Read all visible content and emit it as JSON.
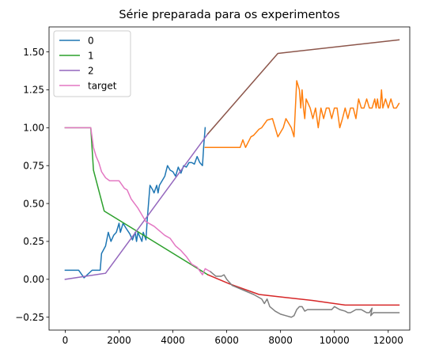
{
  "chart_data": {
    "type": "line",
    "title": "Série preparada para os experimentos",
    "xlabel": "",
    "ylabel": "",
    "xlim": [
      -600,
      12800
    ],
    "ylim": [
      -0.335,
      1.665
    ],
    "xticks": [
      0,
      2000,
      4000,
      6000,
      8000,
      10000,
      12000
    ],
    "xtick_labels": [
      "0",
      "2000",
      "4000",
      "6000",
      "8000",
      "10000",
      "12000"
    ],
    "yticks": [
      -0.25,
      0.0,
      0.25,
      0.5,
      0.75,
      1.0,
      1.25,
      1.5
    ],
    "ytick_labels": [
      "−0.25",
      "0.00",
      "0.25",
      "0.50",
      "0.75",
      "1.00",
      "1.25",
      "1.50"
    ],
    "grid": false,
    "legend_position": "top-left",
    "series": [
      {
        "name": "0",
        "legend": true,
        "color": "#1f77b4",
        "x": [
          0,
          400,
          500,
          700,
          1000,
          1200,
          1300,
          1350,
          1500,
          1600,
          1700,
          1800,
          1900,
          2000,
          2050,
          2150,
          2250,
          2400,
          2500,
          2600,
          2650,
          2700,
          2750,
          2850,
          2900,
          3000,
          3050,
          3150,
          3250,
          3300,
          3400,
          3450,
          3500,
          3600,
          3700,
          3800,
          3900,
          4000,
          4100,
          4200,
          4300,
          4400,
          4500,
          4600,
          4700,
          4800,
          4900,
          5000,
          5100,
          5150,
          5200
        ],
        "y": [
          0.06,
          0.06,
          0.06,
          0.01,
          0.06,
          0.06,
          0.06,
          0.17,
          0.22,
          0.31,
          0.25,
          0.29,
          0.31,
          0.37,
          0.31,
          0.37,
          0.34,
          0.3,
          0.26,
          0.31,
          0.25,
          0.31,
          0.29,
          0.25,
          0.31,
          0.26,
          0.4,
          0.62,
          0.59,
          0.57,
          0.62,
          0.57,
          0.62,
          0.65,
          0.68,
          0.75,
          0.72,
          0.71,
          0.68,
          0.74,
          0.7,
          0.75,
          0.74,
          0.77,
          0.77,
          0.76,
          0.81,
          0.77,
          0.75,
          0.89,
          1.0
        ]
      },
      {
        "name": "",
        "legend": false,
        "color": "#ff7f0e",
        "x": [
          5200,
          5800,
          6500,
          6600,
          6700,
          6900,
          7000,
          7200,
          7300,
          7500,
          7700,
          7900,
          8100,
          8200,
          8400,
          8500,
          8600,
          8700,
          8750,
          8800,
          8850,
          8900,
          8950,
          9100,
          9200,
          9300,
          9400,
          9500,
          9600,
          9700,
          9800,
          9900,
          10000,
          10100,
          10200,
          10300,
          10400,
          10500,
          10600,
          10700,
          10800,
          10900,
          11000,
          11100,
          11200,
          11300,
          11400,
          11500,
          11550,
          11600,
          11650,
          11700,
          11750,
          11800,
          11900,
          12000,
          12100,
          12200,
          12300,
          12400
        ],
        "y": [
          0.87,
          0.87,
          0.87,
          0.92,
          0.87,
          0.94,
          0.95,
          0.99,
          1.0,
          1.05,
          1.06,
          0.94,
          1.0,
          1.06,
          1.0,
          0.94,
          1.31,
          1.25,
          1.13,
          1.25,
          1.13,
          1.06,
          1.19,
          1.13,
          1.06,
          1.13,
          1.0,
          1.13,
          1.06,
          1.13,
          1.13,
          1.06,
          1.13,
          1.13,
          1.0,
          1.06,
          1.13,
          1.06,
          1.13,
          1.13,
          1.06,
          1.19,
          1.13,
          1.13,
          1.19,
          1.13,
          1.13,
          1.19,
          1.13,
          1.19,
          1.13,
          1.13,
          1.25,
          1.13,
          1.19,
          1.13,
          1.19,
          1.13,
          1.13,
          1.16
        ]
      },
      {
        "name": "1",
        "legend": true,
        "color": "#2ca02c",
        "x": [
          0,
          950,
          1050,
          1450,
          5300
        ],
        "y": [
          1.0,
          1.0,
          0.72,
          0.45,
          0.03
        ]
      },
      {
        "name": "",
        "legend": false,
        "color": "#d62728",
        "x": [
          5300,
          6100,
          7200,
          8200,
          9200,
          10400,
          12400
        ],
        "y": [
          0.03,
          -0.03,
          -0.1,
          -0.12,
          -0.14,
          -0.17,
          -0.17
        ]
      },
      {
        "name": "2",
        "legend": true,
        "color": "#9467bd",
        "x": [
          0,
          1500,
          5300
        ],
        "y": [
          0.0,
          0.04,
          0.96
        ]
      },
      {
        "name": "",
        "legend": false,
        "color": "#8c564b",
        "x": [
          5300,
          7900,
          12400
        ],
        "y": [
          0.96,
          1.49,
          1.58
        ]
      },
      {
        "name": "target",
        "legend": true,
        "color": "#e377c2",
        "x": [
          0,
          850,
          950,
          1050,
          1150,
          1250,
          1350,
          1500,
          1650,
          2000,
          2200,
          2300,
          2450,
          2700,
          3000,
          3300,
          3500,
          3700,
          3900,
          4100,
          4300,
          4500,
          4700,
          4900,
          5100,
          5200,
          5300,
          5400
        ],
        "y": [
          1.0,
          1.0,
          1.0,
          0.87,
          0.81,
          0.77,
          0.71,
          0.67,
          0.65,
          0.65,
          0.6,
          0.59,
          0.53,
          0.47,
          0.38,
          0.35,
          0.32,
          0.29,
          0.27,
          0.22,
          0.19,
          0.15,
          0.1,
          0.08,
          0.03,
          0.07,
          0.06,
          0.05
        ]
      },
      {
        "name": "",
        "legend": false,
        "color": "#7f7f7f",
        "x": [
          5400,
          5600,
          5800,
          5900,
          6000,
          6200,
          6600,
          7000,
          7300,
          7400,
          7500,
          7600,
          7800,
          8000,
          8200,
          8400,
          8500,
          8600,
          8700,
          8800,
          8900,
          9000,
          9500,
          9600,
          9800,
          9900,
          10000,
          10200,
          10400,
          10500,
          10600,
          10800,
          11000,
          11100,
          11200,
          11300,
          11400,
          11350,
          11450,
          11600,
          11800,
          12000,
          12200,
          12400
        ],
        "y": [
          0.05,
          0.02,
          0.02,
          0.03,
          0.0,
          -0.04,
          -0.07,
          -0.1,
          -0.13,
          -0.16,
          -0.13,
          -0.18,
          -0.21,
          -0.23,
          -0.24,
          -0.25,
          -0.24,
          -0.2,
          -0.18,
          -0.18,
          -0.21,
          -0.2,
          -0.2,
          -0.2,
          -0.2,
          -0.2,
          -0.18,
          -0.2,
          -0.21,
          -0.22,
          -0.22,
          -0.2,
          -0.2,
          -0.21,
          -0.22,
          -0.22,
          -0.19,
          -0.24,
          -0.22,
          -0.22,
          -0.22,
          -0.22,
          -0.22,
          -0.22
        ]
      }
    ]
  }
}
